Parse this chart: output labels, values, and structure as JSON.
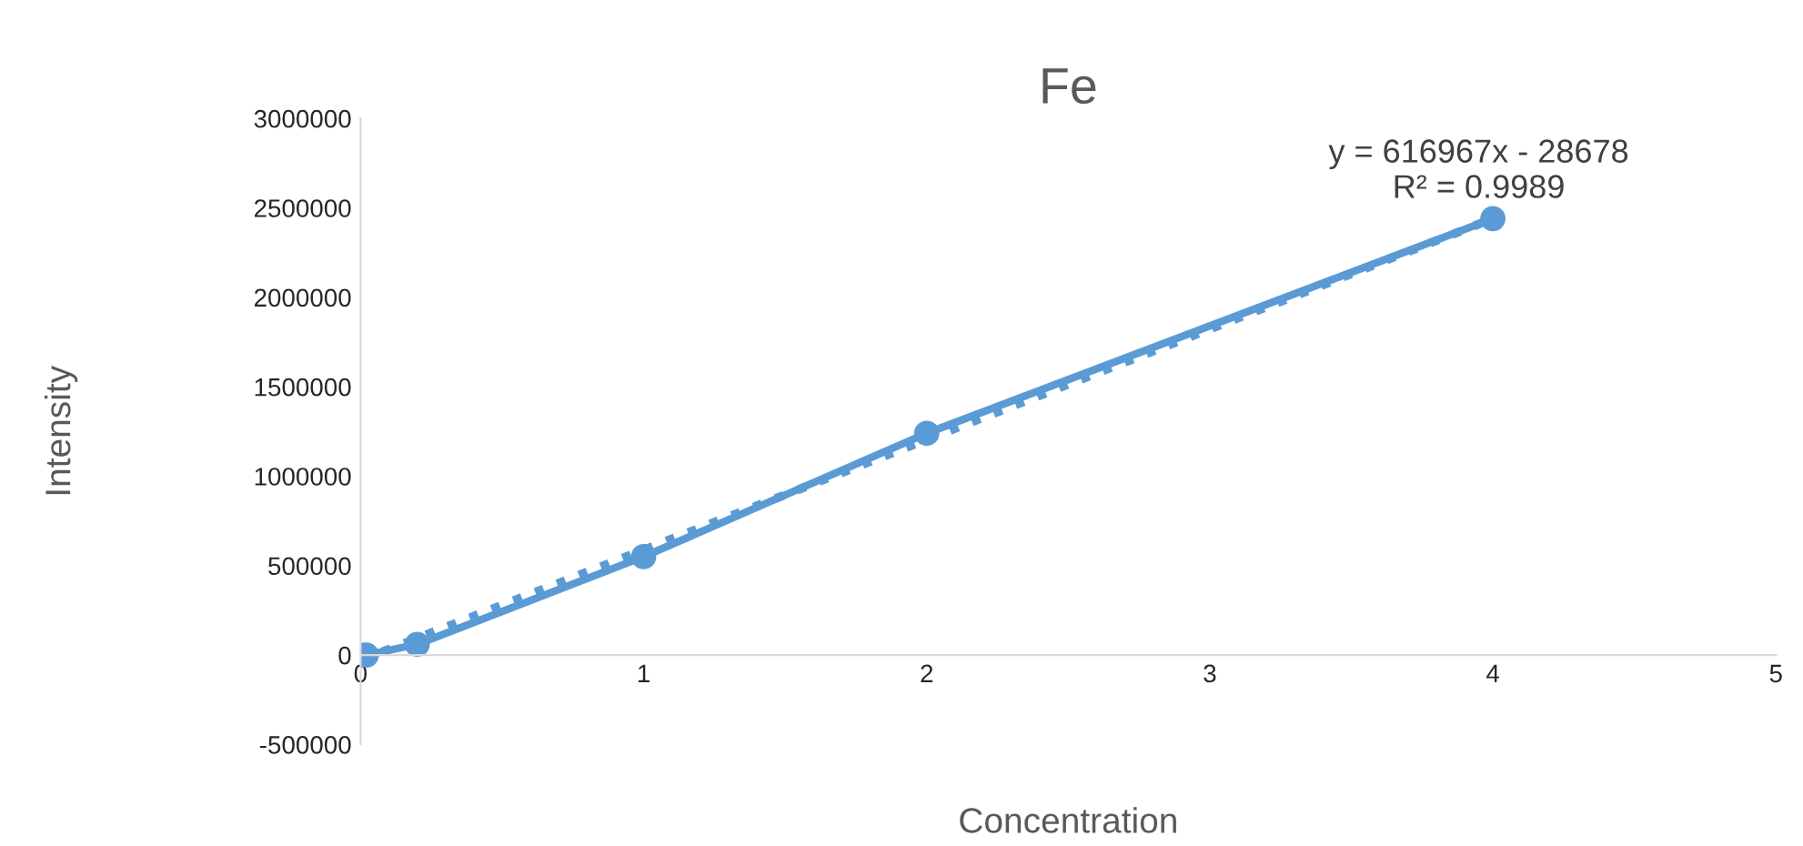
{
  "chart_data": {
    "type": "line",
    "title": "Fe",
    "xlabel": "Concentration",
    "ylabel": "Intensity",
    "series": [
      {
        "color": "#5b9bd5",
        "x": [
          0,
          0.02,
          0.2,
          1,
          2,
          4
        ],
        "values": [
          0,
          0,
          60000,
          550000,
          1240000,
          2440000
        ],
        "marker": "circle",
        "line_style": "solid"
      },
      {
        "type": "line",
        "color": "#5b9bd5",
        "x": [
          0,
          4
        ],
        "values": [
          -30000,
          2440000
        ],
        "marker": "none",
        "line_style": "dotted"
      }
    ],
    "annotations": [
      "y = 616967x - 28678\nR² = 0.9989"
    ],
    "xlim": [
      0,
      5
    ],
    "xticks": [
      0,
      1,
      2,
      3,
      4,
      5
    ],
    "ylim": [
      -500000,
      3000000
    ],
    "yticks": [
      -500000,
      0,
      500000,
      1000000,
      1500000,
      2000000,
      2500000,
      3000000
    ],
    "grid": false,
    "legend": false
  }
}
